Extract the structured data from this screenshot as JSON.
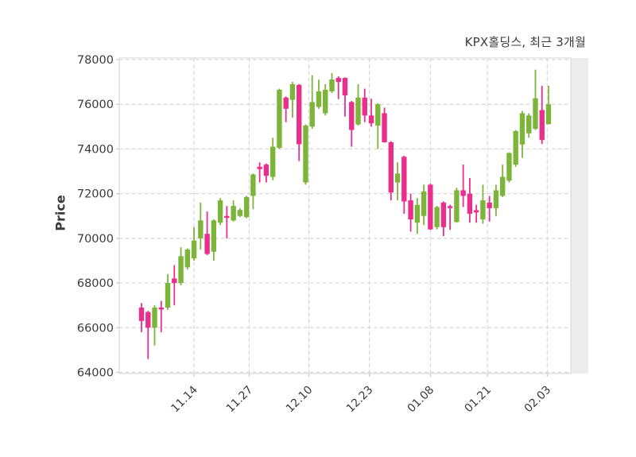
{
  "title": "KPX홀딩스, 최근 3개월",
  "colors": {
    "up": "#7db53a",
    "down": "#ea2e8c",
    "grid": "#d9d9d9",
    "tick": "#c8c8c8",
    "text": "#3b3b3b",
    "plot_bg": "#ffffff",
    "right_margin": "#ececec"
  },
  "chart_data": {
    "type": "candlestick",
    "title": "KPX홀딩스, 최근 3개월",
    "ylabel": "Price",
    "ylim": [
      64000,
      78000
    ],
    "grid": "dashed",
    "y_ticks": [
      78000,
      76000,
      74000,
      72000,
      70000,
      68000,
      66000,
      64000
    ],
    "x_tick_labels": [
      "11.14",
      "11.27",
      "12.10",
      "12.23",
      "01.08",
      "01.21",
      "02.03"
    ],
    "x_tick_indices": [
      8,
      16.4,
      25.5,
      34.7,
      44,
      52.7,
      61.8
    ],
    "candles_format": [
      "open",
      "high",
      "low",
      "close"
    ],
    "candles": [
      [
        66900,
        67100,
        65800,
        66300
      ],
      [
        66700,
        66750,
        64600,
        66000
      ],
      [
        66000,
        67000,
        65200,
        66900
      ],
      [
        66900,
        67200,
        65800,
        66850
      ],
      [
        66900,
        68400,
        66800,
        68000
      ],
      [
        68200,
        68800,
        67000,
        68000
      ],
      [
        68000,
        69600,
        67900,
        69200
      ],
      [
        68700,
        69550,
        68600,
        69500
      ],
      [
        69100,
        70500,
        69000,
        69900
      ],
      [
        70000,
        71600,
        69500,
        70800
      ],
      [
        70200,
        71200,
        69250,
        69300
      ],
      [
        69400,
        70850,
        69000,
        70800
      ],
      [
        70700,
        71800,
        70600,
        71700
      ],
      [
        71000,
        71450,
        70000,
        70950
      ],
      [
        70800,
        71700,
        70750,
        71450
      ],
      [
        71000,
        71350,
        70950,
        71270
      ],
      [
        70950,
        71900,
        70900,
        71850
      ],
      [
        71900,
        72900,
        71300,
        72860
      ],
      [
        73200,
        73400,
        72500,
        73100
      ],
      [
        73300,
        73350,
        72500,
        72800
      ],
      [
        72750,
        74500,
        72600,
        74100
      ],
      [
        74050,
        76700,
        74000,
        76650
      ],
      [
        76300,
        76350,
        75200,
        75800
      ],
      [
        76200,
        77000,
        75400,
        76900
      ],
      [
        76870,
        76900,
        73460,
        74210
      ],
      [
        72500,
        75100,
        72400,
        75050
      ],
      [
        75000,
        77300,
        74900,
        76100
      ],
      [
        75880,
        77100,
        75800,
        76580
      ],
      [
        75600,
        76900,
        75500,
        76650
      ],
      [
        76580,
        77400,
        76500,
        77110
      ],
      [
        77180,
        77250,
        76230,
        77000
      ],
      [
        77180,
        77200,
        75450,
        76400
      ],
      [
        76100,
        76150,
        74100,
        74850
      ],
      [
        75100,
        76900,
        75050,
        76300
      ],
      [
        76300,
        76700,
        75200,
        75500
      ],
      [
        75500,
        76250,
        75000,
        75150
      ],
      [
        75050,
        76050,
        74000,
        76000
      ],
      [
        75600,
        75850,
        74280,
        74300
      ],
      [
        74300,
        74350,
        71700,
        72050
      ],
      [
        72500,
        73400,
        71700,
        72900
      ],
      [
        73650,
        73700,
        71100,
        71650
      ],
      [
        71700,
        72000,
        70300,
        70850
      ],
      [
        70700,
        71800,
        70200,
        71500
      ],
      [
        71000,
        72400,
        70600,
        72100
      ],
      [
        72400,
        72450,
        70380,
        70400
      ],
      [
        70500,
        71450,
        70400,
        71400
      ],
      [
        71600,
        71650,
        70100,
        70500
      ],
      [
        71440,
        71500,
        70380,
        71400
      ],
      [
        70730,
        72260,
        70700,
        72150
      ],
      [
        72150,
        73300,
        71400,
        71900
      ],
      [
        72000,
        72700,
        70700,
        71100
      ],
      [
        71260,
        71500,
        70700,
        71160
      ],
      [
        70850,
        72400,
        70650,
        71700
      ],
      [
        71600,
        71900,
        70750,
        71350
      ],
      [
        71350,
        72400,
        71000,
        72150
      ],
      [
        71900,
        73300,
        71850,
        72750
      ],
      [
        72580,
        73850,
        72500,
        73820
      ],
      [
        73300,
        74850,
        73200,
        74800
      ],
      [
        74200,
        75700,
        73600,
        75600
      ],
      [
        74700,
        75600,
        74500,
        75500
      ],
      [
        74900,
        77550,
        74850,
        76270
      ],
      [
        75740,
        76830,
        74220,
        74400
      ],
      [
        75110,
        76830,
        75100,
        76000
      ]
    ]
  }
}
